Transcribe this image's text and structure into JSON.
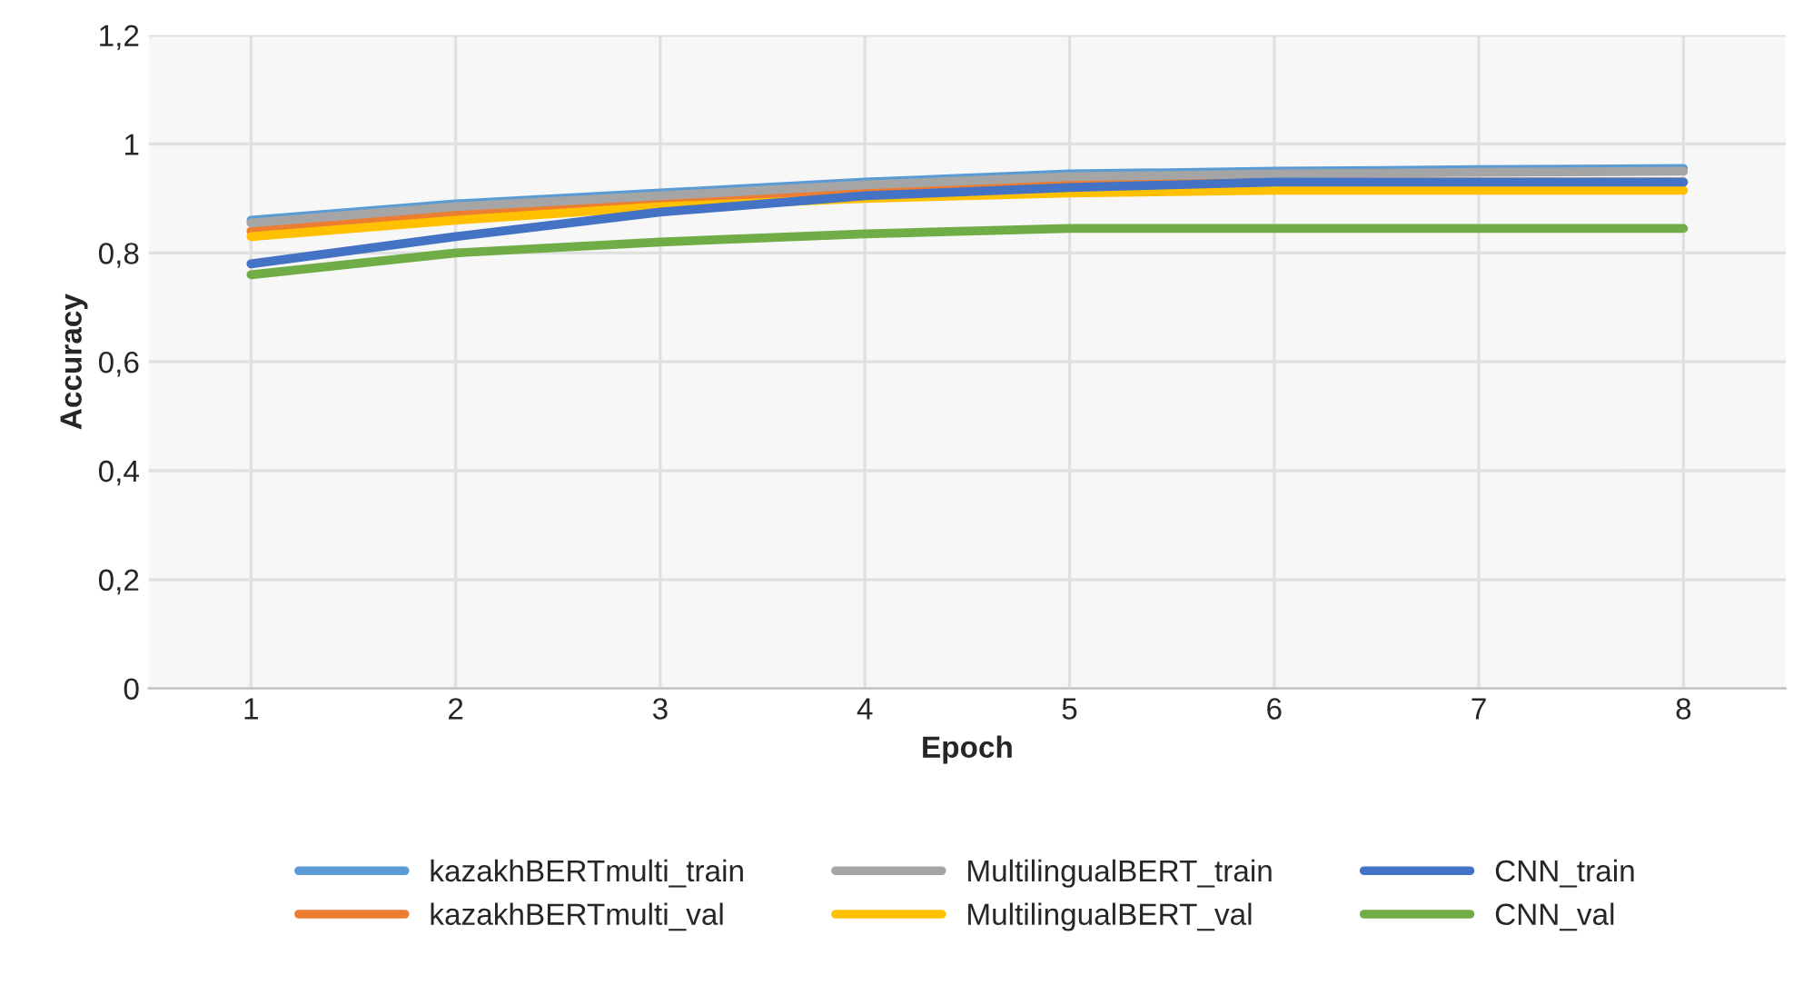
{
  "chart_data": {
    "type": "line",
    "xlabel": "Epoch",
    "ylabel": "Accuracy",
    "categories": [
      "1",
      "2",
      "3",
      "4",
      "5",
      "6",
      "7",
      "8"
    ],
    "ylim": [
      0,
      1.2
    ],
    "yticks": [
      {
        "value": 0,
        "label": "0"
      },
      {
        "value": 0.2,
        "label": "0,2"
      },
      {
        "value": 0.4,
        "label": "0,4"
      },
      {
        "value": 0.6,
        "label": "0,6"
      },
      {
        "value": 0.8,
        "label": "0,8"
      },
      {
        "value": 1,
        "label": "1"
      },
      {
        "value": 1.2,
        "label": "1,2"
      }
    ],
    "grid": true,
    "legend": "bottom",
    "marker": "none",
    "line_style": "solid",
    "series": [
      {
        "name": "kazakhBERTmulti_train",
        "color": "#5b9bd5",
        "values": [
          0.86,
          0.89,
          0.91,
          0.93,
          0.945,
          0.95,
          0.953,
          0.955
        ]
      },
      {
        "name": "kazakhBERTmulti_val",
        "color": "#ed7d31",
        "values": [
          0.84,
          0.87,
          0.895,
          0.915,
          0.925,
          0.93,
          0.93,
          0.93
        ]
      },
      {
        "name": "MultilingualBERT_train",
        "color": "#a5a5a5",
        "values": [
          0.855,
          0.885,
          0.905,
          0.925,
          0.94,
          0.945,
          0.948,
          0.95
        ]
      },
      {
        "name": "MultilingualBERT_val",
        "color": "#ffc000",
        "values": [
          0.83,
          0.86,
          0.885,
          0.9,
          0.91,
          0.915,
          0.915,
          0.915
        ]
      },
      {
        "name": "CNN_train",
        "color": "#4472c4",
        "values": [
          0.78,
          0.83,
          0.875,
          0.905,
          0.92,
          0.93,
          0.93,
          0.93
        ]
      },
      {
        "name": "CNN_val",
        "color": "#70ad47",
        "values": [
          0.76,
          0.8,
          0.82,
          0.835,
          0.845,
          0.845,
          0.845,
          0.845
        ]
      }
    ]
  }
}
